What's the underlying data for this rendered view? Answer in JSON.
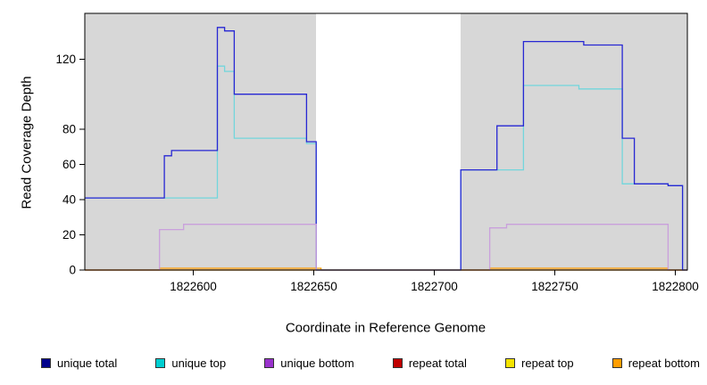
{
  "chart_data": {
    "type": "line",
    "title": "",
    "xlabel": "Coordinate in Reference Genome",
    "ylabel": "Read Coverage Depth",
    "xlim": [
      1822555,
      1822805
    ],
    "ylim": [
      0,
      146
    ],
    "x_ticks": [
      1822600,
      1822650,
      1822700,
      1822750,
      1822800
    ],
    "y_ticks": [
      0,
      20,
      40,
      60,
      80,
      120
    ],
    "grid": false,
    "legend_position": "bottom",
    "plot_bg": "#ffffff",
    "shaded_color": "#d7d7d7",
    "background_regions": [
      {
        "x0": 1822555,
        "x1": 1822651
      },
      {
        "x0": 1822711,
        "x1": 1822805
      }
    ],
    "series": [
      {
        "name": "unique total",
        "color": "#2727d3",
        "legend_color": "#00008b",
        "z": 5,
        "points": [
          [
            1822555,
            41
          ],
          [
            1822588,
            65
          ],
          [
            1822591,
            68
          ],
          [
            1822610,
            138
          ],
          [
            1822613,
            136
          ],
          [
            1822617,
            100
          ],
          [
            1822647,
            73
          ],
          [
            1822651,
            0
          ],
          [
            1822711,
            57
          ],
          [
            1822726,
            82
          ],
          [
            1822737,
            130
          ],
          [
            1822762,
            128
          ],
          [
            1822778,
            75
          ],
          [
            1822783,
            49
          ],
          [
            1822797,
            48
          ],
          [
            1822803,
            0
          ],
          [
            1822805,
            0
          ]
        ]
      },
      {
        "name": "unique top",
        "color": "#72d6dc",
        "legend_color": "#00ced1",
        "z": 4,
        "points": [
          [
            1822555,
            41
          ],
          [
            1822610,
            116
          ],
          [
            1822613,
            113
          ],
          [
            1822617,
            75
          ],
          [
            1822647,
            72
          ],
          [
            1822651,
            0
          ],
          [
            1822711,
            57
          ],
          [
            1822737,
            105
          ],
          [
            1822760,
            103
          ],
          [
            1822778,
            49
          ],
          [
            1822797,
            48
          ],
          [
            1822803,
            0
          ],
          [
            1822805,
            0
          ]
        ]
      },
      {
        "name": "unique bottom",
        "color": "#c9a0dc",
        "legend_color": "#9932cc",
        "z": 6,
        "points": [
          [
            1822555,
            0
          ],
          [
            1822586,
            23
          ],
          [
            1822596,
            26
          ],
          [
            1822651,
            0
          ],
          [
            1822723,
            24
          ],
          [
            1822730,
            26
          ],
          [
            1822797,
            0
          ],
          [
            1822805,
            0
          ]
        ]
      },
      {
        "name": "repeat total",
        "color": "#c00000",
        "legend_color": "#c00000",
        "z": 1,
        "points": [
          [
            1822555,
            0
          ],
          [
            1822805,
            0
          ]
        ]
      },
      {
        "name": "repeat top",
        "color": "#f5e400",
        "legend_color": "#f5e400",
        "z": 2,
        "points": [
          [
            1822555,
            0
          ],
          [
            1822805,
            0
          ]
        ]
      },
      {
        "name": "repeat bottom",
        "color": "#ff9d00",
        "legend_color": "#ff9d00",
        "z": 3,
        "points": [
          [
            1822555,
            0
          ],
          [
            1822586,
            1
          ],
          [
            1822653,
            0
          ],
          [
            1822723,
            1
          ],
          [
            1822797,
            0
          ],
          [
            1822805,
            0
          ]
        ]
      }
    ]
  }
}
